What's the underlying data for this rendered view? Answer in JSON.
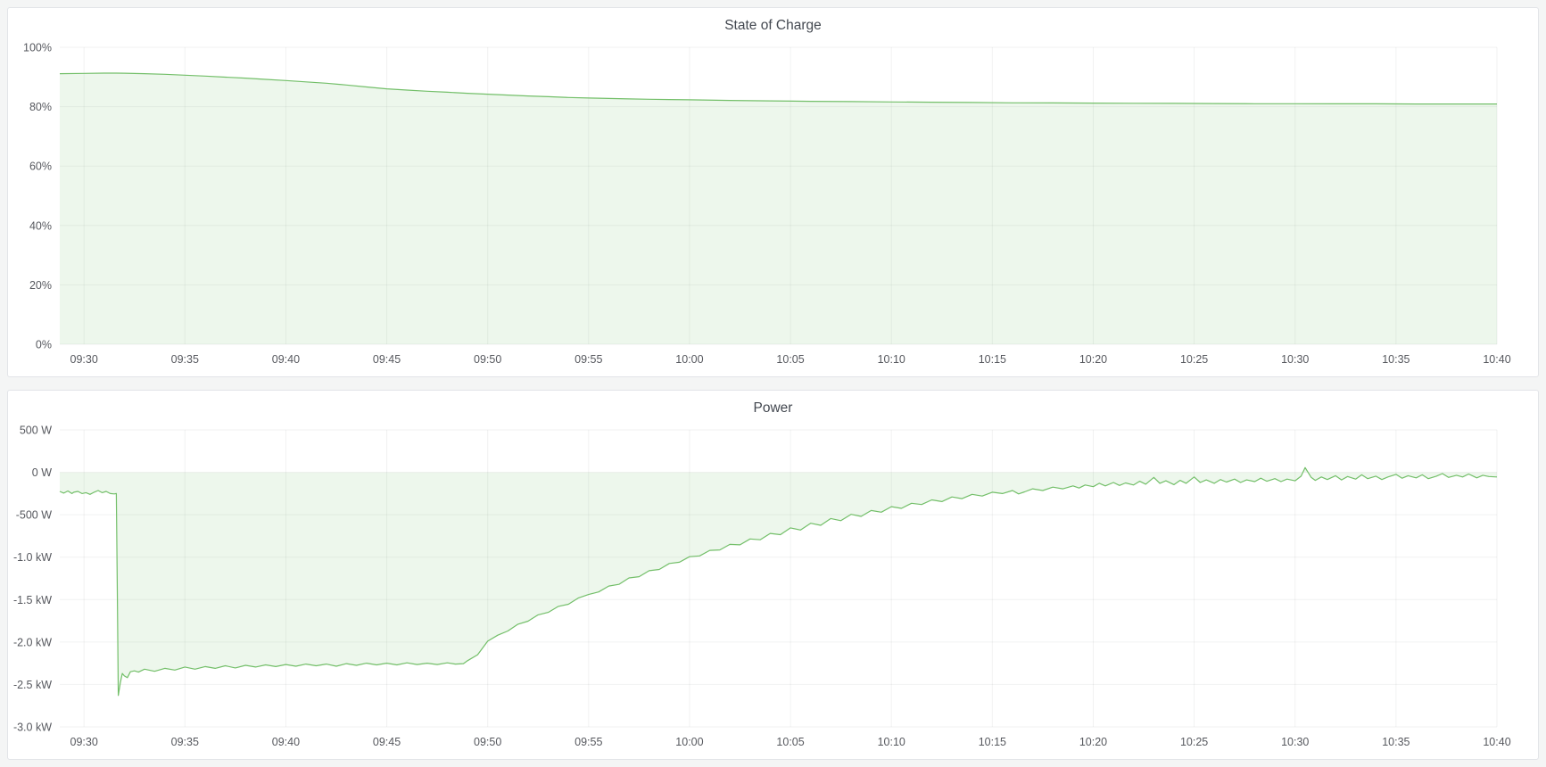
{
  "page": {
    "background_color": "#f4f5f5",
    "panel_background": "#ffffff",
    "accent_green": "#73bf69"
  },
  "chart_data": [
    {
      "type": "area",
      "title": "State of Charge",
      "xlabel": "",
      "ylabel": "",
      "legend": "none",
      "grid": "on",
      "x_ticks": [
        "09:30",
        "09:35",
        "09:40",
        "09:45",
        "09:50",
        "09:55",
        "10:00",
        "10:05",
        "10:10",
        "10:15",
        "10:20",
        "10:25",
        "10:30",
        "10:35",
        "10:40"
      ],
      "x_tick_minutes": [
        0,
        5,
        10,
        15,
        20,
        25,
        30,
        35,
        40,
        45,
        50,
        55,
        60,
        65,
        70
      ],
      "x_range_minutes": [
        -1.2,
        70
      ],
      "ylim": [
        0,
        100
      ],
      "y_ticks": [
        {
          "value": 100,
          "label": "100%"
        },
        {
          "value": 80,
          "label": "80%"
        },
        {
          "value": 60,
          "label": "60%"
        },
        {
          "value": 40,
          "label": "40%"
        },
        {
          "value": 20,
          "label": "20%"
        },
        {
          "value": 0,
          "label": "0%"
        }
      ],
      "line_color": "#73bf69",
      "fill_color": "rgba(115,191,105,0.13)",
      "fill_to": 0,
      "points": [
        [
          -1.2,
          91.1
        ],
        [
          0,
          91.2
        ],
        [
          1,
          91.3
        ],
        [
          1.6,
          91.3
        ],
        [
          2,
          91.25
        ],
        [
          3,
          91.1
        ],
        [
          4,
          90.9
        ],
        [
          5,
          90.6
        ],
        [
          6,
          90.3
        ],
        [
          7,
          89.95
        ],
        [
          8,
          89.6
        ],
        [
          9,
          89.2
        ],
        [
          10,
          88.8
        ],
        [
          11,
          88.35
        ],
        [
          12,
          87.9
        ],
        [
          13,
          87.3
        ],
        [
          14,
          86.65
        ],
        [
          15,
          86.0
        ],
        [
          16,
          85.6
        ],
        [
          17,
          85.2
        ],
        [
          18,
          84.85
        ],
        [
          19,
          84.5
        ],
        [
          20,
          84.2
        ],
        [
          21,
          83.9
        ],
        [
          22,
          83.6
        ],
        [
          23,
          83.35
        ],
        [
          24,
          83.1
        ],
        [
          25,
          82.9
        ],
        [
          26,
          82.75
        ],
        [
          27,
          82.6
        ],
        [
          28,
          82.5
        ],
        [
          29,
          82.4
        ],
        [
          30,
          82.3
        ],
        [
          32,
          82.1
        ],
        [
          34,
          81.95
        ],
        [
          36,
          81.8
        ],
        [
          38,
          81.7
        ],
        [
          40,
          81.6
        ],
        [
          42,
          81.5
        ],
        [
          44,
          81.4
        ],
        [
          46,
          81.3
        ],
        [
          48,
          81.25
        ],
        [
          50,
          81.2
        ],
        [
          52,
          81.15
        ],
        [
          54,
          81.1
        ],
        [
          56,
          81.05
        ],
        [
          58,
          81.0
        ],
        [
          60,
          81.0
        ],
        [
          62,
          80.95
        ],
        [
          64,
          80.95
        ],
        [
          66,
          80.9
        ],
        [
          68,
          80.9
        ],
        [
          70,
          80.9
        ]
      ]
    },
    {
      "type": "area",
      "title": "Power",
      "xlabel": "",
      "ylabel": "",
      "legend": "none",
      "grid": "on",
      "x_ticks": [
        "09:30",
        "09:35",
        "09:40",
        "09:45",
        "09:50",
        "09:55",
        "10:00",
        "10:05",
        "10:10",
        "10:15",
        "10:20",
        "10:25",
        "10:30",
        "10:35",
        "10:40"
      ],
      "x_tick_minutes": [
        0,
        5,
        10,
        15,
        20,
        25,
        30,
        35,
        40,
        45,
        50,
        55,
        60,
        65,
        70
      ],
      "x_range_minutes": [
        -1.2,
        70
      ],
      "ylim": [
        -3000,
        500
      ],
      "y_ticks": [
        {
          "value": 500,
          "label": "500 W"
        },
        {
          "value": 0,
          "label": "0 W"
        },
        {
          "value": -500,
          "label": "-500 W"
        },
        {
          "value": -1000,
          "label": "-1.0 kW"
        },
        {
          "value": -1500,
          "label": "-1.5 kW"
        },
        {
          "value": -2000,
          "label": "-2.0 kW"
        },
        {
          "value": -2500,
          "label": "-2.5 kW"
        },
        {
          "value": -3000,
          "label": "-3.0 kW"
        }
      ],
      "line_color": "#73bf69",
      "fill_color": "rgba(115,191,105,0.13)",
      "fill_to": 0,
      "points": [
        [
          -1.2,
          -225
        ],
        [
          -1.0,
          -245
        ],
        [
          -0.8,
          -220
        ],
        [
          -0.6,
          -250
        ],
        [
          -0.5,
          -235
        ],
        [
          -0.3,
          -225
        ],
        [
          -0.1,
          -250
        ],
        [
          0.1,
          -240
        ],
        [
          0.3,
          -260
        ],
        [
          0.5,
          -235
        ],
        [
          0.7,
          -215
        ],
        [
          0.9,
          -240
        ],
        [
          1.1,
          -225
        ],
        [
          1.3,
          -250
        ],
        [
          1.5,
          -255
        ],
        [
          1.6,
          -250
        ],
        [
          1.65,
          -1400
        ],
        [
          1.7,
          -2630
        ],
        [
          1.8,
          -2480
        ],
        [
          1.9,
          -2370
        ],
        [
          2.0,
          -2400
        ],
        [
          2.15,
          -2420
        ],
        [
          2.3,
          -2350
        ],
        [
          2.5,
          -2340
        ],
        [
          2.7,
          -2355
        ],
        [
          3.0,
          -2320
        ],
        [
          3.5,
          -2345
        ],
        [
          4.0,
          -2310
        ],
        [
          4.5,
          -2330
        ],
        [
          5.0,
          -2295
        ],
        [
          5.5,
          -2320
        ],
        [
          6.0,
          -2290
        ],
        [
          6.5,
          -2310
        ],
        [
          7.0,
          -2280
        ],
        [
          7.5,
          -2305
        ],
        [
          8.0,
          -2275
        ],
        [
          8.5,
          -2295
        ],
        [
          9.0,
          -2270
        ],
        [
          9.5,
          -2290
        ],
        [
          10.0,
          -2265
        ],
        [
          10.5,
          -2285
        ],
        [
          11.0,
          -2260
        ],
        [
          11.5,
          -2280
        ],
        [
          12.0,
          -2260
        ],
        [
          12.5,
          -2285
        ],
        [
          13.0,
          -2255
        ],
        [
          13.5,
          -2275
        ],
        [
          14.0,
          -2250
        ],
        [
          14.5,
          -2270
        ],
        [
          15.0,
          -2250
        ],
        [
          15.5,
          -2270
        ],
        [
          16.0,
          -2245
        ],
        [
          16.5,
          -2265
        ],
        [
          17.0,
          -2250
        ],
        [
          17.5,
          -2265
        ],
        [
          18.0,
          -2245
        ],
        [
          18.4,
          -2260
        ],
        [
          18.8,
          -2255
        ],
        [
          19.0,
          -2220
        ],
        [
          19.5,
          -2150
        ],
        [
          20.0,
          -1990
        ],
        [
          20.5,
          -1920
        ],
        [
          21.0,
          -1870
        ],
        [
          21.5,
          -1790
        ],
        [
          22.0,
          -1755
        ],
        [
          22.5,
          -1680
        ],
        [
          23.0,
          -1650
        ],
        [
          23.5,
          -1580
        ],
        [
          24.0,
          -1555
        ],
        [
          24.5,
          -1480
        ],
        [
          25.0,
          -1440
        ],
        [
          25.5,
          -1410
        ],
        [
          26.0,
          -1340
        ],
        [
          26.5,
          -1320
        ],
        [
          27.0,
          -1245
        ],
        [
          27.5,
          -1230
        ],
        [
          28.0,
          -1160
        ],
        [
          28.5,
          -1145
        ],
        [
          29.0,
          -1075
        ],
        [
          29.5,
          -1060
        ],
        [
          30.0,
          -995
        ],
        [
          30.5,
          -985
        ],
        [
          31.0,
          -920
        ],
        [
          31.5,
          -915
        ],
        [
          32.0,
          -850
        ],
        [
          32.5,
          -855
        ],
        [
          33.0,
          -785
        ],
        [
          33.5,
          -795
        ],
        [
          34.0,
          -720
        ],
        [
          34.5,
          -735
        ],
        [
          35.0,
          -655
        ],
        [
          35.5,
          -680
        ],
        [
          36.0,
          -600
        ],
        [
          36.5,
          -625
        ],
        [
          37.0,
          -545
        ],
        [
          37.5,
          -570
        ],
        [
          38.0,
          -495
        ],
        [
          38.5,
          -520
        ],
        [
          39.0,
          -450
        ],
        [
          39.5,
          -470
        ],
        [
          40.0,
          -405
        ],
        [
          40.5,
          -425
        ],
        [
          41.0,
          -365
        ],
        [
          41.5,
          -380
        ],
        [
          42.0,
          -325
        ],
        [
          42.5,
          -345
        ],
        [
          43.0,
          -290
        ],
        [
          43.5,
          -310
        ],
        [
          44.0,
          -260
        ],
        [
          44.5,
          -280
        ],
        [
          45.0,
          -235
        ],
        [
          45.5,
          -250
        ],
        [
          46.0,
          -215
        ],
        [
          46.3,
          -255
        ],
        [
          46.6,
          -230
        ],
        [
          47.0,
          -195
        ],
        [
          47.5,
          -215
        ],
        [
          48.0,
          -175
        ],
        [
          48.5,
          -195
        ],
        [
          49.0,
          -160
        ],
        [
          49.3,
          -185
        ],
        [
          49.6,
          -150
        ],
        [
          50.0,
          -170
        ],
        [
          50.3,
          -130
        ],
        [
          50.6,
          -160
        ],
        [
          51.0,
          -120
        ],
        [
          51.3,
          -155
        ],
        [
          51.6,
          -125
        ],
        [
          52.0,
          -150
        ],
        [
          52.3,
          -105
        ],
        [
          52.6,
          -140
        ],
        [
          53.0,
          -60
        ],
        [
          53.3,
          -130
        ],
        [
          53.6,
          -100
        ],
        [
          54.0,
          -145
        ],
        [
          54.3,
          -95
        ],
        [
          54.6,
          -130
        ],
        [
          55.0,
          -55
        ],
        [
          55.3,
          -120
        ],
        [
          55.6,
          -90
        ],
        [
          56.0,
          -130
        ],
        [
          56.3,
          -85
        ],
        [
          56.6,
          -115
        ],
        [
          57.0,
          -80
        ],
        [
          57.3,
          -120
        ],
        [
          57.6,
          -90
        ],
        [
          58.0,
          -110
        ],
        [
          58.3,
          -70
        ],
        [
          58.6,
          -105
        ],
        [
          59.0,
          -75
        ],
        [
          59.3,
          -110
        ],
        [
          59.6,
          -80
        ],
        [
          60.0,
          -100
        ],
        [
          60.3,
          -45
        ],
        [
          60.5,
          55
        ],
        [
          60.8,
          -60
        ],
        [
          61.0,
          -95
        ],
        [
          61.3,
          -55
        ],
        [
          61.6,
          -85
        ],
        [
          62.0,
          -40
        ],
        [
          62.3,
          -90
        ],
        [
          62.6,
          -50
        ],
        [
          63.0,
          -80
        ],
        [
          63.3,
          -30
        ],
        [
          63.6,
          -75
        ],
        [
          64.0,
          -45
        ],
        [
          64.3,
          -85
        ],
        [
          64.6,
          -55
        ],
        [
          65.0,
          -25
        ],
        [
          65.3,
          -70
        ],
        [
          65.6,
          -40
        ],
        [
          66.0,
          -65
        ],
        [
          66.3,
          -30
        ],
        [
          66.6,
          -75
        ],
        [
          67.0,
          -45
        ],
        [
          67.3,
          -15
        ],
        [
          67.6,
          -60
        ],
        [
          68.0,
          -35
        ],
        [
          68.3,
          -55
        ],
        [
          68.6,
          -20
        ],
        [
          69.0,
          -65
        ],
        [
          69.3,
          -35
        ],
        [
          69.6,
          -50
        ],
        [
          70.0,
          -55
        ]
      ]
    }
  ]
}
